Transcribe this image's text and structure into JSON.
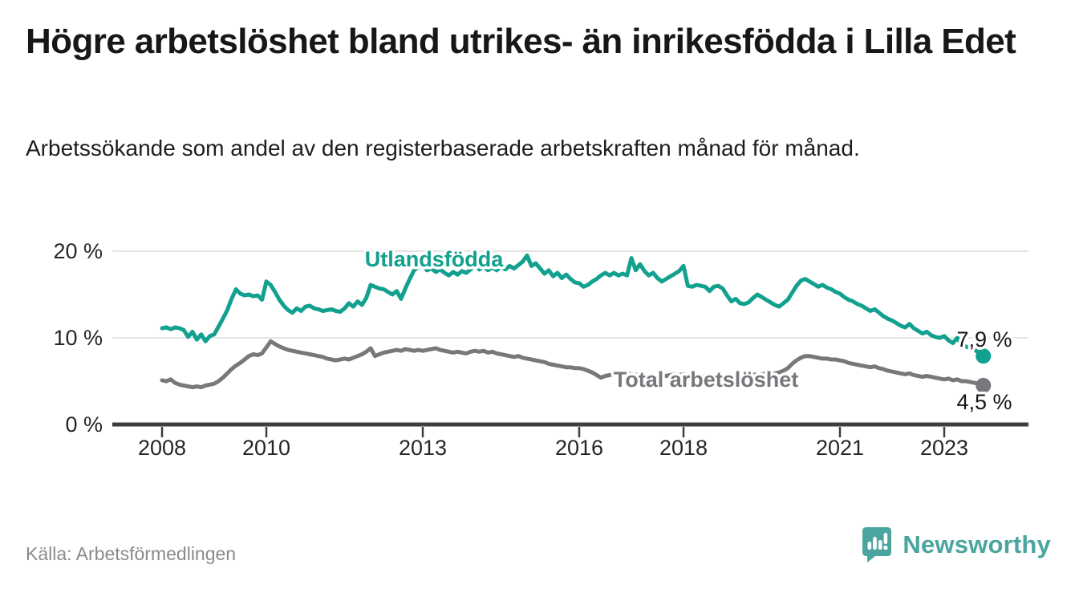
{
  "header": {
    "title": "Högre arbetslöshet bland utrikes- än inrikesfödda i Lilla Edet",
    "subtitle": "Arbetssökande som andel av den registerbaserade arbetskraften månad för månad."
  },
  "footer": {
    "source": "Källa: Arbetsförmedlingen",
    "brand": "Newsworthy"
  },
  "colors": {
    "foreign_born_line": "#12a08f",
    "total_line": "#77787b",
    "brand_teal": "#4aa59e",
    "axis": "#3e3e40",
    "gridline": "#dcdcdc",
    "label_text": "#161616",
    "source_text": "#8a8a8a"
  },
  "chart_data": {
    "type": "line",
    "title": "Högre arbetslöshet bland utrikes- än inrikesfödda i Lilla Edet",
    "subtitle": "Arbetssökande som andel av den registerbaserade arbetskraften månad för månad.",
    "unit": "%",
    "x_start_year": 2008.0,
    "x_step_months": 1,
    "x_end": "2023-10",
    "x_ticks": [
      "2008",
      "2010",
      "2013",
      "2016",
      "2018",
      "2021",
      "2023"
    ],
    "y_ticks": [
      {
        "value": 0,
        "label": "0 %"
      },
      {
        "value": 10,
        "label": "10 %"
      },
      {
        "value": 20,
        "label": "20 %"
      }
    ],
    "ylim": [
      0,
      21.5
    ],
    "grid": "horizontal",
    "legend": "inline-labels",
    "series": [
      {
        "name": "Utlandsfödda",
        "color": "#12a08f",
        "end_value": 7.9,
        "end_label": "7,9 %",
        "values": [
          11.1,
          11.2,
          11.0,
          11.2,
          11.1,
          10.9,
          10.1,
          10.7,
          9.8,
          10.4,
          9.6,
          10.2,
          10.4,
          11.3,
          12.2,
          13.2,
          14.5,
          15.6,
          15.1,
          14.9,
          15.0,
          14.8,
          14.9,
          14.4,
          16.5,
          16.1,
          15.3,
          14.4,
          13.7,
          13.2,
          12.9,
          13.4,
          13.1,
          13.6,
          13.7,
          13.4,
          13.3,
          13.1,
          13.2,
          13.3,
          13.1,
          13.0,
          13.4,
          14.0,
          13.6,
          14.2,
          13.8,
          14.6,
          16.1,
          15.9,
          15.7,
          15.6,
          15.3,
          15.0,
          15.4,
          14.5,
          15.7,
          16.8,
          17.8,
          18.2,
          18.3,
          17.8,
          18.0,
          17.6,
          17.9,
          17.5,
          17.2,
          17.6,
          17.3,
          17.7,
          17.5,
          17.9,
          18.4,
          17.9,
          18.2,
          17.8,
          18.1,
          17.8,
          18.2,
          17.9,
          18.3,
          18.0,
          18.4,
          18.8,
          19.5,
          18.3,
          18.6,
          18.0,
          17.4,
          17.8,
          17.1,
          17.5,
          16.9,
          17.3,
          16.8,
          16.4,
          16.3,
          15.9,
          16.1,
          16.5,
          16.8,
          17.2,
          17.5,
          17.2,
          17.5,
          17.2,
          17.4,
          17.2,
          19.2,
          17.8,
          18.5,
          17.7,
          17.2,
          17.5,
          16.9,
          16.5,
          16.8,
          17.1,
          17.4,
          17.7,
          18.3,
          16.0,
          15.9,
          16.1,
          16.0,
          15.9,
          15.4,
          15.9,
          16.0,
          15.7,
          14.9,
          14.2,
          14.5,
          14.0,
          13.9,
          14.1,
          14.6,
          15.0,
          14.7,
          14.4,
          14.1,
          13.8,
          13.6,
          14.0,
          14.4,
          15.2,
          16.0,
          16.6,
          16.8,
          16.5,
          16.2,
          15.9,
          16.1,
          15.8,
          15.6,
          15.3,
          15.1,
          14.7,
          14.4,
          14.2,
          13.9,
          13.7,
          13.4,
          13.1,
          13.3,
          12.9,
          12.5,
          12.2,
          12.0,
          11.7,
          11.4,
          11.2,
          11.6,
          11.1,
          10.8,
          10.5,
          10.7,
          10.3,
          10.1,
          10.0,
          10.2,
          9.7,
          9.4,
          10.0,
          9.2,
          9.0,
          8.8,
          8.6,
          8.3,
          7.9
        ]
      },
      {
        "name": "Total arbetslöshet",
        "color": "#77787b",
        "end_value": 4.5,
        "end_label": "4,5 %",
        "values": [
          5.1,
          5.0,
          5.2,
          4.8,
          4.6,
          4.5,
          4.4,
          4.3,
          4.4,
          4.3,
          4.5,
          4.6,
          4.7,
          5.0,
          5.4,
          5.9,
          6.4,
          6.8,
          7.1,
          7.5,
          7.9,
          8.1,
          8.0,
          8.2,
          8.9,
          9.6,
          9.3,
          9.0,
          8.8,
          8.6,
          8.5,
          8.4,
          8.3,
          8.2,
          8.1,
          8.0,
          7.9,
          7.8,
          7.6,
          7.5,
          7.4,
          7.5,
          7.6,
          7.5,
          7.7,
          7.9,
          8.1,
          8.4,
          8.8,
          7.9,
          8.1,
          8.3,
          8.4,
          8.5,
          8.6,
          8.5,
          8.7,
          8.6,
          8.5,
          8.6,
          8.5,
          8.6,
          8.7,
          8.8,
          8.6,
          8.5,
          8.4,
          8.3,
          8.4,
          8.3,
          8.2,
          8.4,
          8.5,
          8.4,
          8.5,
          8.3,
          8.4,
          8.2,
          8.1,
          8.0,
          7.9,
          7.8,
          7.9,
          7.7,
          7.6,
          7.5,
          7.4,
          7.3,
          7.2,
          7.0,
          6.9,
          6.8,
          6.7,
          6.6,
          6.6,
          6.5,
          6.5,
          6.4,
          6.2,
          6.0,
          5.7,
          5.4,
          5.6,
          5.7,
          5.8,
          5.7,
          5.8,
          5.9,
          5.8,
          5.7,
          5.8,
          5.7,
          5.6,
          5.5,
          5.6,
          5.7,
          5.6,
          5.7,
          5.8,
          5.7,
          5.8,
          5.7,
          5.6,
          5.5,
          5.6,
          5.5,
          5.4,
          5.5,
          5.4,
          5.5,
          5.6,
          5.5,
          5.6,
          5.7,
          5.6,
          5.7,
          5.8,
          5.7,
          5.8,
          5.9,
          5.8,
          5.9,
          6.0,
          6.2,
          6.5,
          7.0,
          7.4,
          7.7,
          7.9,
          7.9,
          7.8,
          7.7,
          7.6,
          7.6,
          7.5,
          7.5,
          7.4,
          7.3,
          7.1,
          7.0,
          6.9,
          6.8,
          6.7,
          6.6,
          6.7,
          6.5,
          6.4,
          6.2,
          6.1,
          6.0,
          5.9,
          5.8,
          5.9,
          5.7,
          5.6,
          5.5,
          5.6,
          5.5,
          5.4,
          5.3,
          5.2,
          5.3,
          5.1,
          5.2,
          5.0,
          5.0,
          4.9,
          4.8,
          4.7,
          4.5
        ]
      }
    ]
  }
}
